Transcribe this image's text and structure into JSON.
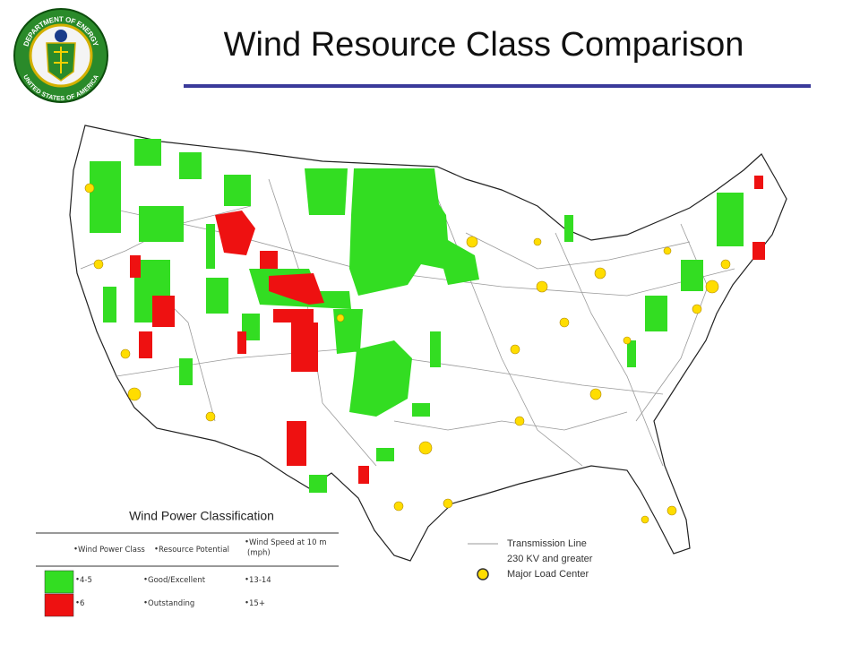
{
  "header": {
    "title": "Wind Resource Class Comparison",
    "seal": {
      "top": "DEPARTMENT OF ENERGY",
      "bottom": "UNITED STATES OF AMERICA"
    }
  },
  "classification": {
    "title": "Wind Power Classification",
    "columns": [
      "Wind Power Class",
      "Resource Potential",
      "Wind Speed at 10 m",
      "(mph)"
    ],
    "rows": [
      {
        "class": "4-5",
        "potential": "Good/Excellent",
        "speed": "13-14",
        "color": "#33dd22"
      },
      {
        "class": "6",
        "potential": "Outstanding",
        "speed": "15+",
        "color": "#ee1111"
      }
    ]
  },
  "map_legend": {
    "transmission": [
      "Transmission Line",
      "230 KV and greater"
    ],
    "load_center": "Major Load Center"
  }
}
